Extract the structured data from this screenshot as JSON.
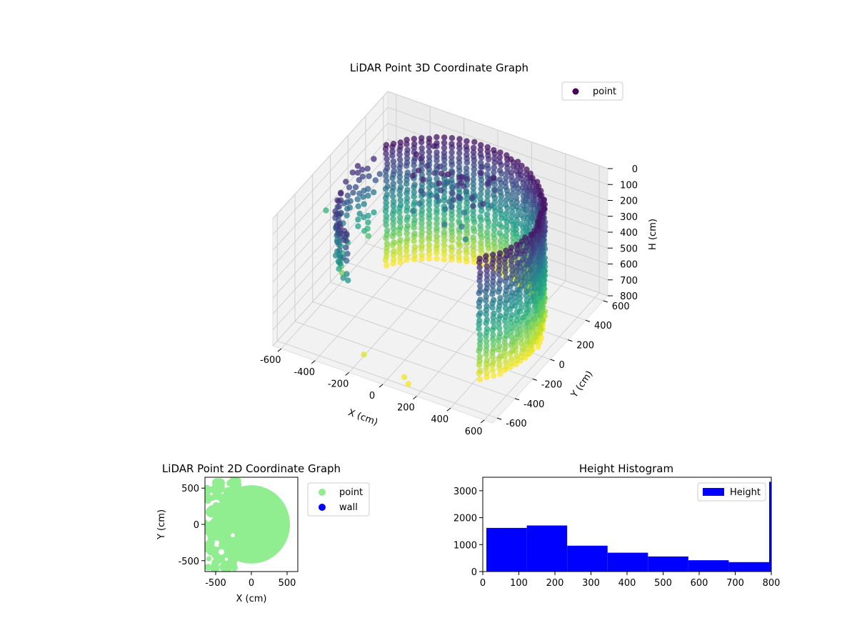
{
  "chart_data": [
    {
      "type": "scatter3d",
      "title": "LiDAR Point 3D Coordinate Graph",
      "xlabel": "X (cm)",
      "ylabel": "Y (cm)",
      "zlabel": "H (cm)",
      "xlim": [
        -650,
        650
      ],
      "ylim": [
        -650,
        650
      ],
      "zlim": [
        800,
        0
      ],
      "x_ticks": [
        -600,
        -400,
        -200,
        0,
        200,
        400,
        600
      ],
      "y_ticks": [
        -600,
        -400,
        -200,
        0,
        200,
        400,
        600
      ],
      "z_ticks": [
        0,
        100,
        200,
        300,
        400,
        500,
        600,
        700,
        800
      ],
      "z_inverted": true,
      "colormap": "viridis",
      "legend": [
        {
          "name": "point",
          "color": "#440154"
        }
      ],
      "legend_position": "top-right",
      "shape": "cylindrical wall of radius ~550 cm, open toward -Y, heights 0-800 cm",
      "grid": true
    },
    {
      "type": "scatter",
      "title": "LiDAR Point 2D Coordinate Graph",
      "xlabel": "X (cm)",
      "ylabel": "Y (cm)",
      "xlim": [
        -650,
        650
      ],
      "ylim": [
        -650,
        650
      ],
      "x_ticks": [
        -500,
        0,
        500
      ],
      "y_ticks": [
        -500,
        0,
        500
      ],
      "series": [
        {
          "name": "point",
          "color": "#90ee90"
        },
        {
          "name": "wall",
          "color": "#0000ff"
        }
      ],
      "legend_position": "outside-right"
    },
    {
      "type": "bar",
      "title": "Height Histogram",
      "xlabel": "",
      "ylabel": "",
      "bins": [
        {
          "start": 10,
          "end": 122,
          "count": 1620
        },
        {
          "start": 122,
          "end": 234,
          "count": 1710
        },
        {
          "start": 234,
          "end": 346,
          "count": 960
        },
        {
          "start": 346,
          "end": 458,
          "count": 700
        },
        {
          "start": 458,
          "end": 570,
          "count": 560
        },
        {
          "start": 570,
          "end": 682,
          "count": 420
        },
        {
          "start": 682,
          "end": 794,
          "count": 350
        },
        {
          "start": 794,
          "end": 800,
          "count": 3330
        }
      ],
      "xlim": [
        0,
        800
      ],
      "ylim": [
        0,
        3500
      ],
      "x_ticks": [
        0,
        100,
        200,
        300,
        400,
        500,
        600,
        700,
        800
      ],
      "y_ticks": [
        0,
        1000,
        2000,
        3000
      ],
      "legend": [
        {
          "name": "Height",
          "color": "#0000ff"
        }
      ],
      "legend_position": "top-right"
    }
  ]
}
